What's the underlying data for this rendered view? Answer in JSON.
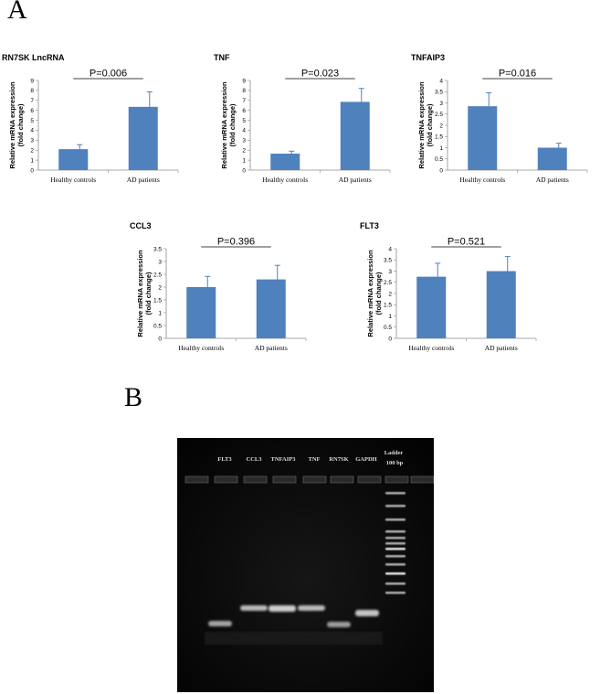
{
  "panels": {
    "a": "A",
    "b": "B"
  },
  "colors": {
    "bar": "#4f81bd",
    "error": "#4f81bd",
    "gel_bg": "#060606",
    "band": "#d8d8d8"
  },
  "chart_data": [
    {
      "type": "bar",
      "title": "RN7SK LncRNA",
      "ylabel": "Relative mRNA expression (fold change)",
      "categories": [
        "Healthy controls",
        "AD patients"
      ],
      "values": [
        2.1,
        6.35
      ],
      "errors": [
        0.45,
        1.5
      ],
      "ylim": [
        0,
        9
      ],
      "yticks": [
        0,
        1,
        2,
        3,
        4,
        5,
        6,
        7,
        8,
        9
      ],
      "annotation": "P=0.006"
    },
    {
      "type": "bar",
      "title": "TNF",
      "ylabel": "Relative mRNA expression (fold change)",
      "categories": [
        "Healthy controls",
        "AD patients"
      ],
      "values": [
        1.65,
        6.85
      ],
      "errors": [
        0.25,
        1.35
      ],
      "ylim": [
        0,
        9
      ],
      "yticks": [
        0,
        1,
        2,
        3,
        4,
        5,
        6,
        7,
        8,
        9
      ],
      "annotation": "P=0.023"
    },
    {
      "type": "bar",
      "title": "TNFAIP3",
      "ylabel": "Relative mRNA expression (fold change)",
      "categories": [
        "Healthy controls",
        "AD patients"
      ],
      "values": [
        2.85,
        1.0
      ],
      "errors": [
        0.6,
        0.2
      ],
      "ylim": [
        0,
        4
      ],
      "yticks": [
        0,
        0.5,
        1,
        1.5,
        2,
        2.5,
        3,
        3.5,
        4
      ],
      "annotation": "P=0.016"
    },
    {
      "type": "bar",
      "title": "CCL3",
      "ylabel": "Relative mRNA expression (fold change)",
      "categories": [
        "Healthy controls",
        "AD patients"
      ],
      "values": [
        2.0,
        2.3
      ],
      "errors": [
        0.42,
        0.55
      ],
      "ylim": [
        0,
        3.5
      ],
      "yticks": [
        0,
        0.5,
        1,
        1.5,
        2,
        2.5,
        3,
        3.5
      ],
      "annotation": "P=0.396"
    },
    {
      "type": "bar",
      "title": "FLT3",
      "ylabel": "Relative mRNA expression (fold change)",
      "categories": [
        "Healthy controls",
        "AD patients"
      ],
      "values": [
        2.75,
        3.0
      ],
      "errors": [
        0.6,
        0.65
      ],
      "ylim": [
        0,
        4
      ],
      "yticks": [
        0,
        0.5,
        1,
        1.5,
        2,
        2.5,
        3,
        3.5,
        4
      ],
      "annotation": "P=0.521"
    }
  ],
  "gel": {
    "lanes": [
      "FLT3",
      "CCL3",
      "TNFAIP3",
      "TNF",
      "RN7SK",
      "GAPDH"
    ],
    "ladder_label_1": "Ladder",
    "ladder_label_2": "100 bp"
  }
}
